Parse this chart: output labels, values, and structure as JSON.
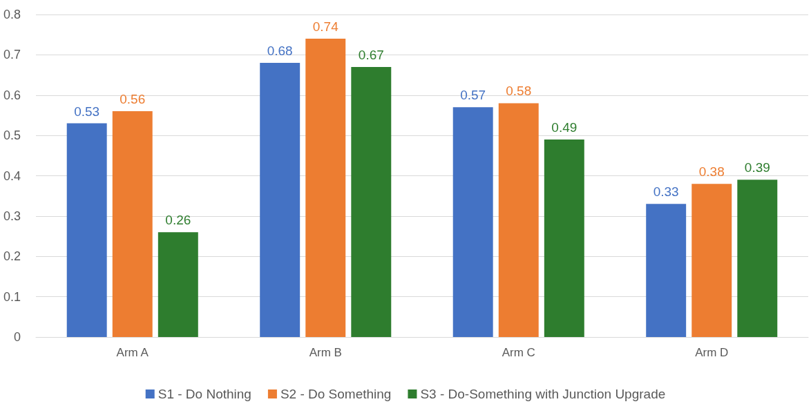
{
  "chart_data": {
    "type": "bar",
    "categories": [
      "Arm A",
      "Arm B",
      "Arm C",
      "Arm D"
    ],
    "series": [
      {
        "name": "S1 - Do Nothing",
        "color": "#4472c4",
        "values": [
          0.53,
          0.68,
          0.57,
          0.33
        ]
      },
      {
        "name": "S2 - Do Something",
        "color": "#ed7d31",
        "values": [
          0.56,
          0.74,
          0.58,
          0.38
        ]
      },
      {
        "name": "S3 - Do-Something with Junction Upgrade",
        "color": "#2e7d2e",
        "values": [
          0.26,
          0.67,
          0.49,
          0.39
        ]
      }
    ],
    "ylim": [
      0,
      0.8
    ],
    "yticks": [
      0,
      0.1,
      0.2,
      0.3,
      0.4,
      0.5,
      0.6,
      0.7,
      0.8
    ],
    "grid": "y",
    "legend": "bottom",
    "data_labels": true
  }
}
